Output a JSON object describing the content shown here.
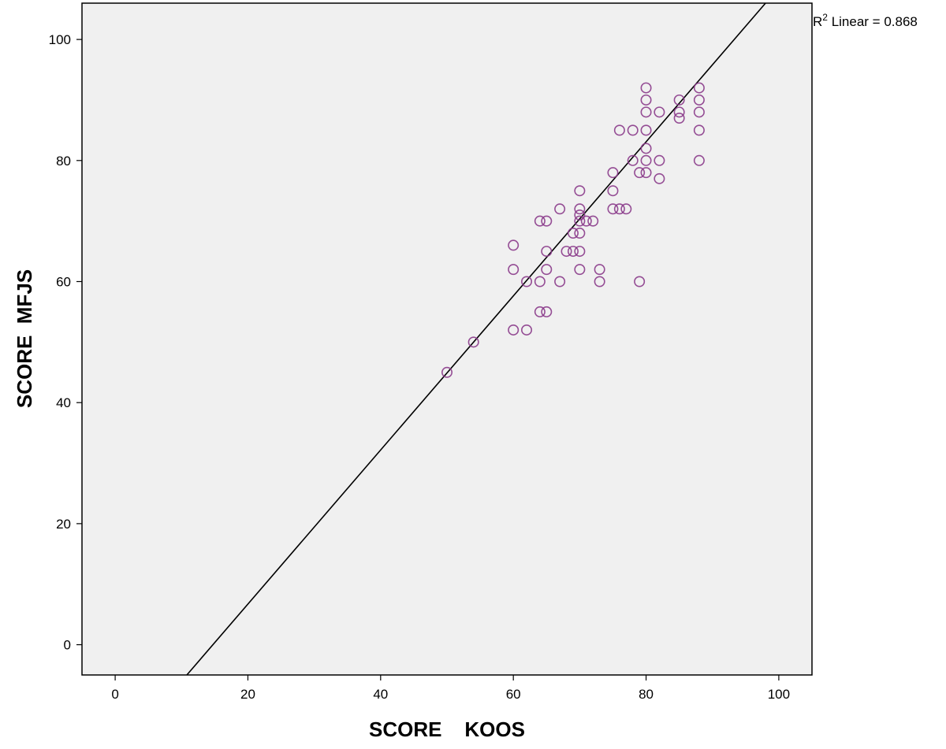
{
  "chart_data": {
    "type": "scatter",
    "xlabel": "SCORE    KOOS",
    "ylabel": "SCORE  MFJS",
    "xlim": [
      -5,
      105
    ],
    "ylim": [
      -5,
      106
    ],
    "x_ticks": [
      0,
      20,
      40,
      60,
      80,
      100
    ],
    "y_ticks": [
      0,
      20,
      40,
      60,
      80,
      100
    ],
    "grid": false,
    "plot_background": "#f0f0f0",
    "marker": "open-circle",
    "marker_color": "#8a3a8a",
    "fit_line_color": "#000000",
    "fit_line": {
      "type": "linear",
      "annotation_prefix": "R",
      "annotation_superscript": "2",
      "annotation_suffix": " Linear = 0.868",
      "endpoints": [
        [
          10.8,
          -5
        ],
        [
          98,
          106
        ]
      ]
    },
    "points": [
      [
        50,
        45
      ],
      [
        54,
        50
      ],
      [
        60,
        52
      ],
      [
        62,
        52
      ],
      [
        60,
        62
      ],
      [
        60,
        66
      ],
      [
        62,
        60
      ],
      [
        64,
        60
      ],
      [
        64,
        55
      ],
      [
        65,
        55
      ],
      [
        64,
        70
      ],
      [
        65,
        70
      ],
      [
        65,
        65
      ],
      [
        65,
        62
      ],
      [
        67,
        72
      ],
      [
        67,
        60
      ],
      [
        68,
        65
      ],
      [
        69,
        65
      ],
      [
        69,
        68
      ],
      [
        70,
        68
      ],
      [
        70,
        65
      ],
      [
        70,
        62
      ],
      [
        70,
        70
      ],
      [
        70,
        71
      ],
      [
        70,
        72
      ],
      [
        70,
        75
      ],
      [
        71,
        70
      ],
      [
        72,
        70
      ],
      [
        73,
        62
      ],
      [
        73,
        60
      ],
      [
        75,
        72
      ],
      [
        75,
        75
      ],
      [
        75,
        78
      ],
      [
        76,
        72
      ],
      [
        77,
        72
      ],
      [
        76,
        85
      ],
      [
        78,
        85
      ],
      [
        78,
        80
      ],
      [
        79,
        78
      ],
      [
        79,
        60
      ],
      [
        80,
        78
      ],
      [
        80,
        80
      ],
      [
        80,
        82
      ],
      [
        80,
        85
      ],
      [
        80,
        88
      ],
      [
        80,
        90
      ],
      [
        80,
        92
      ],
      [
        82,
        80
      ],
      [
        82,
        77
      ],
      [
        82,
        88
      ],
      [
        85,
        87
      ],
      [
        85,
        88
      ],
      [
        85,
        90
      ],
      [
        88,
        80
      ],
      [
        88,
        85
      ],
      [
        88,
        88
      ],
      [
        88,
        90
      ],
      [
        88,
        92
      ]
    ]
  }
}
